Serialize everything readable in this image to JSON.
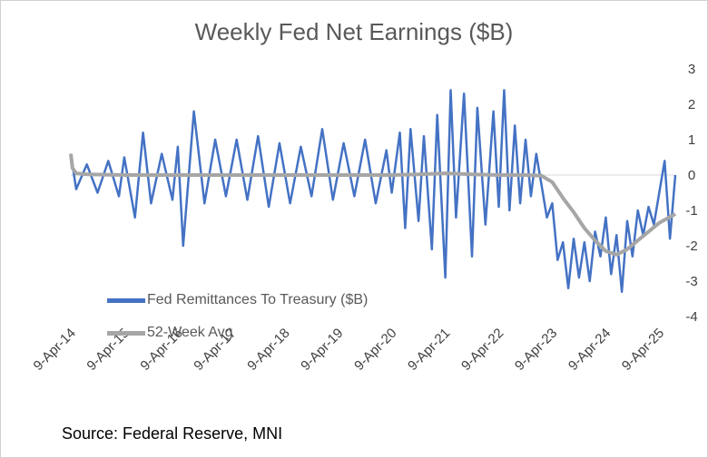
{
  "chart_data": {
    "type": "line",
    "title": "Weekly Fed Net Earnings ($B)",
    "xlabel": "",
    "ylabel": "",
    "ylim": [
      -4,
      3
    ],
    "yticks": [
      -4,
      -3,
      -2,
      -1,
      0,
      1,
      2,
      3
    ],
    "x_tick_labels": [
      "9-Apr-14",
      "9-Apr-15",
      "9-Apr-16",
      "9-Apr-17",
      "9-Apr-18",
      "9-Apr-19",
      "9-Apr-20",
      "9-Apr-21",
      "9-Apr-22",
      "9-Apr-23",
      "9-Apr-24",
      "9-Apr-25"
    ],
    "x_tick_years": [
      2014,
      2015,
      2016,
      2017,
      2018,
      2019,
      2020,
      2021,
      2022,
      2023,
      2024,
      2025
    ],
    "legend_position": "middle-left",
    "grid": false,
    "x_range_years": [
      2014,
      2025.3
    ],
    "series": [
      {
        "name": "Fed Remittances To Treasury ($B)",
        "color": "#4472c4",
        "x": [
          2014.0,
          2014.1,
          2014.3,
          2014.5,
          2014.7,
          2014.9,
          2015.0,
          2015.2,
          2015.35,
          2015.5,
          2015.7,
          2015.9,
          2016.0,
          2016.1,
          2016.3,
          2016.5,
          2016.7,
          2016.9,
          2017.1,
          2017.3,
          2017.5,
          2017.7,
          2017.9,
          2018.1,
          2018.3,
          2018.5,
          2018.7,
          2018.9,
          2019.1,
          2019.3,
          2019.5,
          2019.7,
          2019.9,
          2020.0,
          2020.15,
          2020.25,
          2020.35,
          2020.5,
          2020.6,
          2020.75,
          2020.85,
          2021.0,
          2021.1,
          2021.2,
          2021.35,
          2021.5,
          2021.6,
          2021.75,
          2021.9,
          2022.0,
          2022.1,
          2022.2,
          2022.3,
          2022.4,
          2022.5,
          2022.6,
          2022.7,
          2022.8,
          2022.9,
          2023.0,
          2023.1,
          2023.2,
          2023.3,
          2023.4,
          2023.5,
          2023.6,
          2023.7,
          2023.8,
          2023.9,
          2024.0,
          2024.1,
          2024.2,
          2024.3,
          2024.4,
          2024.5,
          2024.6,
          2024.7,
          2024.8,
          2024.9,
          2025.0,
          2025.1,
          2025.2,
          2025.3
        ],
        "values": [
          0.6,
          -0.4,
          0.3,
          -0.5,
          0.4,
          -0.6,
          0.5,
          -1.2,
          1.2,
          -0.8,
          0.6,
          -0.7,
          0.8,
          -2.0,
          1.8,
          -0.8,
          1.0,
          -0.6,
          1.0,
          -0.7,
          1.1,
          -0.9,
          0.9,
          -0.8,
          0.8,
          -0.6,
          1.3,
          -0.7,
          0.9,
          -0.6,
          1.0,
          -0.8,
          0.7,
          -0.5,
          1.2,
          -1.5,
          1.3,
          -1.3,
          1.1,
          -2.1,
          1.7,
          -2.9,
          2.4,
          -1.2,
          2.3,
          -2.3,
          1.9,
          -1.4,
          1.8,
          -0.9,
          2.4,
          -1.0,
          1.4,
          -0.8,
          1.0,
          -0.6,
          0.6,
          -0.3,
          -1.2,
          -0.8,
          -2.4,
          -1.9,
          -3.2,
          -1.8,
          -2.9,
          -1.9,
          -3.0,
          -1.6,
          -2.3,
          -1.2,
          -2.8,
          -1.7,
          -3.3,
          -1.3,
          -2.3,
          -1.0,
          -1.7,
          -0.9,
          -1.4,
          -0.5,
          0.4,
          -1.8,
          0.0
        ]
      },
      {
        "name": "52-Week Avg",
        "color": "#a6a6a6",
        "x": [
          2014.0,
          2014.03,
          2014.1,
          2014.3,
          2015.0,
          2016.0,
          2017.0,
          2018.0,
          2019.0,
          2020.0,
          2020.5,
          2021.0,
          2021.5,
          2022.0,
          2022.5,
          2022.8,
          2023.0,
          2023.2,
          2023.4,
          2023.6,
          2023.8,
          2024.0,
          2024.2,
          2024.4,
          2024.6,
          2024.8,
          2025.0,
          2025.3
        ],
        "values": [
          0.6,
          0.2,
          0.05,
          0.02,
          0.0,
          0.0,
          0.0,
          0.0,
          0.0,
          0.0,
          0.02,
          0.05,
          0.02,
          0.0,
          0.0,
          -0.02,
          -0.2,
          -0.65,
          -1.05,
          -1.5,
          -1.85,
          -2.15,
          -2.25,
          -2.1,
          -1.85,
          -1.6,
          -1.35,
          -1.1
        ]
      }
    ]
  },
  "source_text": "Source: Federal Reserve, MNI"
}
